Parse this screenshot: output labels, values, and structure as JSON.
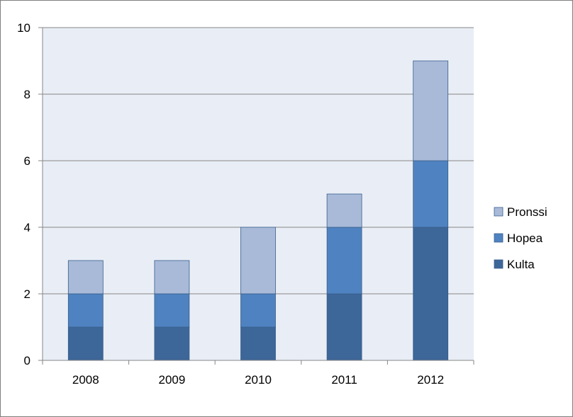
{
  "chart_data": {
    "type": "bar",
    "stacked": true,
    "categories": [
      "2008",
      "2009",
      "2010",
      "2011",
      "2012"
    ],
    "series": [
      {
        "name": "Kulta",
        "color": "#3d6699",
        "values": [
          1,
          1,
          1,
          2,
          4
        ]
      },
      {
        "name": "Hopea",
        "color": "#4f82c0",
        "values": [
          1,
          1,
          1,
          2,
          2
        ]
      },
      {
        "name": "Pronssi",
        "color": "#a9bad9",
        "values": [
          1,
          1,
          2,
          1,
          3
        ]
      }
    ],
    "ylim": [
      0,
      10
    ],
    "yticks": [
      0,
      2,
      4,
      6,
      8,
      10
    ],
    "grid": true,
    "legend_position": "right",
    "legend_order": [
      "Pronssi",
      "Hopea",
      "Kulta"
    ],
    "plot_background": "#e9eef6"
  }
}
